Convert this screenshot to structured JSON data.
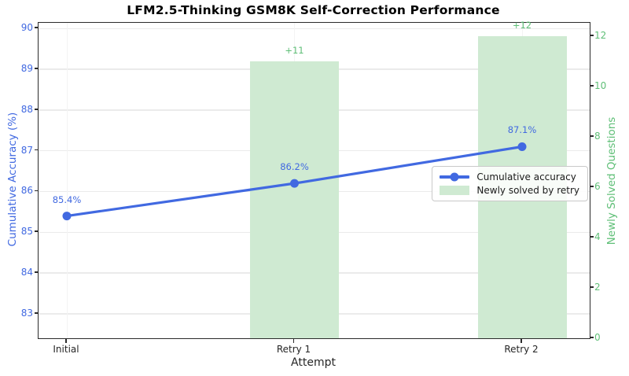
{
  "chart_data": {
    "type": "combo: line (left axis) + bar (right axis), dual y-axis",
    "title": "LFM2.5-Thinking GSM8K Self-Correction Performance",
    "xlabel": "Attempt",
    "categories": [
      "Initial",
      "Retry 1",
      "Retry 2"
    ],
    "left_axis": {
      "label": "Cumulative Accuracy (%)",
      "color": "#4169E1",
      "ticks": [
        90,
        89,
        88,
        87,
        86,
        85,
        84,
        83
      ],
      "range": [
        82.4,
        90.14
      ]
    },
    "right_axis": {
      "label": "Newly Solved Questions",
      "color": "#5FBF77",
      "ticks": [
        12,
        10,
        8,
        6,
        4,
        2,
        0
      ],
      "range": [
        0,
        12.53
      ]
    },
    "series": [
      {
        "name": "Cumulative accuracy",
        "type": "line",
        "axis": "left",
        "color": "#4169E1",
        "values": [
          85.4,
          86.2,
          87.1
        ],
        "point_labels": [
          "85.4%",
          "86.2%",
          "87.1%"
        ]
      },
      {
        "name": "Newly solved by retry",
        "type": "bar",
        "axis": "right",
        "fill": "#CFEAD2",
        "label_color": "#5FBF77",
        "values": [
          null,
          11,
          12
        ],
        "point_labels": [
          "",
          "+11",
          "+12"
        ]
      }
    ],
    "legend": {
      "position": "center-right",
      "entries": [
        "Cumulative accuracy",
        "Newly solved by retry"
      ]
    },
    "grid": "light horizontal lines at left-axis ticks, very faint vertical lines at x ticks"
  }
}
